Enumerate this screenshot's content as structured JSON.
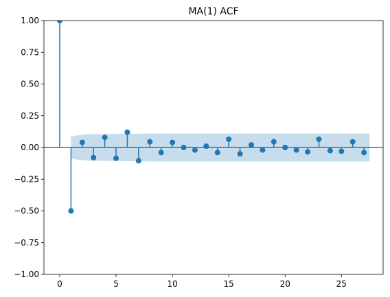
{
  "chart_data": {
    "type": "stem",
    "title": "MA(1) ACF",
    "xlabel": "",
    "ylabel": "",
    "xlim": [
      -1.4,
      28.7
    ],
    "ylim": [
      -1.0,
      1.0
    ],
    "x_ticks": [
      0,
      5,
      10,
      15,
      20,
      25
    ],
    "y_ticks": [
      -1.0,
      -0.75,
      -0.5,
      -0.25,
      0.0,
      0.25,
      0.5,
      0.75,
      1.0
    ],
    "y_tick_labels": [
      "−1.00",
      "−0.75",
      "−0.50",
      "−0.25",
      "0.00",
      "0.25",
      "0.50",
      "0.75",
      "1.00"
    ],
    "x_tick_labels": [
      "0",
      "5",
      "10",
      "15",
      "20",
      "25"
    ],
    "lags": [
      0,
      1,
      2,
      3,
      4,
      5,
      6,
      7,
      8,
      9,
      10,
      11,
      12,
      13,
      14,
      15,
      16,
      17,
      18,
      19,
      20,
      21,
      22,
      23,
      24,
      25,
      26,
      27
    ],
    "acf": [
      1.0,
      -0.5,
      0.04,
      -0.08,
      0.08,
      -0.085,
      0.12,
      -0.105,
      0.045,
      -0.04,
      0.04,
      0.0,
      -0.02,
      0.01,
      -0.04,
      0.065,
      -0.05,
      0.02,
      -0.02,
      0.045,
      0.0,
      -0.02,
      -0.035,
      0.065,
      -0.025,
      -0.03,
      0.045,
      -0.04
    ],
    "confidence_band": {
      "lags": [
        1,
        1.5,
        2,
        2.5,
        3,
        4,
        5,
        6,
        7,
        8,
        9,
        10,
        11,
        12,
        13,
        14,
        15,
        16,
        17,
        18,
        19,
        20,
        21,
        22,
        23,
        24,
        25,
        26,
        27,
        27.5
      ],
      "upper": [
        0.085,
        0.095,
        0.1,
        0.104,
        0.105,
        0.106,
        0.107,
        0.108,
        0.109,
        0.11,
        0.11,
        0.11,
        0.11,
        0.11,
        0.11,
        0.11,
        0.11,
        0.11,
        0.11,
        0.11,
        0.11,
        0.11,
        0.11,
        0.11,
        0.11,
        0.11,
        0.11,
        0.11,
        0.11,
        0.11
      ]
    },
    "grid": false,
    "colors": {
      "stem": "#1f77b4",
      "band": "#1f77b4",
      "band_opacity": 0.25
    }
  }
}
